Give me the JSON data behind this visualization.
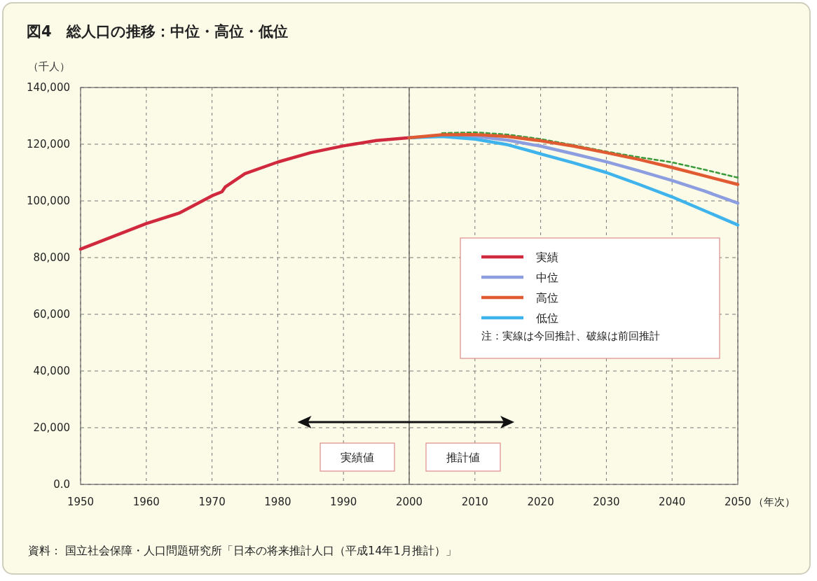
{
  "chart_data": {
    "type": "line",
    "title": "図4　総人口の推移：中位・高位・低位",
    "ylabel": "（千人）",
    "xlabel": "（年次）",
    "xlim": [
      1950,
      2050
    ],
    "xticks": [
      1950,
      1960,
      1970,
      1980,
      1990,
      2000,
      2010,
      2020,
      2030,
      2040,
      2050
    ],
    "ylim": [
      0,
      140000
    ],
    "yticks": [
      {
        "value": 0,
        "label": "0.0"
      },
      {
        "value": 20000,
        "label": "20,000"
      },
      {
        "value": 40000,
        "label": "40,000"
      },
      {
        "value": 60000,
        "label": "60,000"
      },
      {
        "value": 80000,
        "label": "80,000"
      },
      {
        "value": 100000,
        "label": "100,000"
      },
      {
        "value": 120000,
        "label": "120,000"
      },
      {
        "value": 140000,
        "label": "140,000"
      }
    ],
    "grid": true,
    "legend": "right",
    "marker": "none",
    "series": [
      {
        "name": "実績",
        "color": "#d0283c",
        "x": [
          1950,
          1960,
          1965,
          1970,
          1971.5,
          1972,
          1975,
          1980,
          1985,
          1990,
          1995,
          2000
        ],
        "values": [
          83000,
          92000,
          95700,
          101800,
          103200,
          104900,
          109600,
          113700,
          117000,
          119400,
          121300,
          122300
        ]
      },
      {
        "name": "中位",
        "color": "#8c9ee0",
        "x": [
          2000,
          2005,
          2010,
          2015,
          2020,
          2025,
          2030,
          2035,
          2040,
          2045,
          2050
        ],
        "values": [
          122300,
          123000,
          122800,
          121400,
          119300,
          116600,
          113800,
          110600,
          107200,
          103400,
          99200
        ]
      },
      {
        "name": "高位",
        "color": "#e05a32",
        "x": [
          2000,
          2005,
          2010,
          2015,
          2020,
          2025,
          2030,
          2035,
          2040,
          2045,
          2050
        ],
        "values": [
          122300,
          123300,
          123400,
          122700,
          121200,
          119300,
          117000,
          114600,
          111800,
          108800,
          105800
        ]
      },
      {
        "name": "低位",
        "color": "#3fb4ec",
        "x": [
          2000,
          2005,
          2010,
          2015,
          2020,
          2025,
          2030,
          2035,
          2040,
          2045,
          2050
        ],
        "values": [
          122300,
          122700,
          121800,
          119800,
          116600,
          113400,
          110000,
          105800,
          101400,
          96500,
          91500
        ]
      },
      {
        "color": "#3a9a3a",
        "line_style": "dotted",
        "x": [
          2005,
          2010,
          2015,
          2020,
          2025,
          2030,
          2035,
          2040,
          2045,
          2050
        ],
        "values": [
          123900,
          124200,
          123400,
          121800,
          119700,
          117400,
          115400,
          113600,
          111000,
          108200
        ]
      }
    ],
    "ref_lines": [
      {
        "axis": "x",
        "value": 2000,
        "color": "#555555",
        "line_style": "solid"
      }
    ],
    "annotations": [
      "注：実線は今回推計、破線は前回推計",
      "実績値",
      "推計値",
      "資料：  国立社会保障・人口問題研究所「日本の将来推計人口（平成14年1月推計）」"
    ]
  }
}
